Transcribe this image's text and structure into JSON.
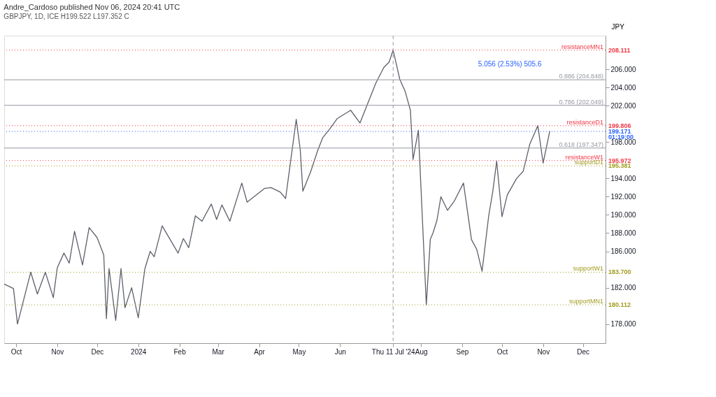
{
  "chart_data": {
    "type": "line",
    "title": "Andre_Cardoso published Nov 06, 2024 20:41 UTC",
    "subtitle": "GBPJPY, 1D, ICE  H199.522  L197.352  C",
    "ylabel": "JPY",
    "x": [
      "2023-09-22",
      "2023-09-29",
      "2023-10-02",
      "2023-10-12",
      "2023-10-17",
      "2023-10-23",
      "2023-10-29",
      "2023-11-01",
      "2023-11-06",
      "2023-11-10",
      "2023-11-14",
      "2023-11-20",
      "2023-11-25",
      "2023-12-01",
      "2023-12-06",
      "2023-12-08",
      "2023-12-10",
      "2023-12-15",
      "2023-12-19",
      "2023-12-22",
      "2023-12-27",
      "2024-01-01",
      "2024-01-06",
      "2024-01-10",
      "2024-01-13",
      "2024-01-19",
      "2024-01-25",
      "2024-01-31",
      "2024-02-04",
      "2024-02-08",
      "2024-02-13",
      "2024-02-18",
      "2024-02-25",
      "2024-02-29",
      "2024-03-04",
      "2024-03-10",
      "2024-03-19",
      "2024-03-23",
      "2024-04-05",
      "2024-04-10",
      "2024-04-17",
      "2024-04-21",
      "2024-04-29",
      "2024-05-02",
      "2024-05-04",
      "2024-05-10",
      "2024-05-15",
      "2024-05-19",
      "2024-05-24",
      "2024-05-30",
      "2024-06-09",
      "2024-06-16",
      "2024-06-28",
      "2024-07-04",
      "2024-07-08",
      "2024-07-11",
      "2024-07-14",
      "2024-07-16",
      "2024-07-20",
      "2024-07-24",
      "2024-07-26",
      "2024-07-30",
      "2024-08-05",
      "2024-08-08",
      "2024-08-10",
      "2024-08-13",
      "2024-08-16",
      "2024-08-21",
      "2024-08-26",
      "2024-09-02",
      "2024-09-08",
      "2024-09-12",
      "2024-09-16",
      "2024-09-21",
      "2024-09-24",
      "2024-09-27",
      "2024-10-01",
      "2024-10-05",
      "2024-10-12",
      "2024-10-17",
      "2024-10-22",
      "2024-10-28",
      "2024-11-01",
      "2024-11-04",
      "2024-11-06"
    ],
    "series": [
      {
        "color": "#5d606b",
        "values": [
          182.4,
          181.9,
          178.0,
          183.7,
          181.3,
          183.7,
          180.9,
          184.2,
          185.8,
          184.7,
          188.2,
          184.5,
          188.6,
          187.5,
          185.6,
          178.6,
          184.1,
          178.4,
          184.1,
          179.8,
          182.0,
          178.7,
          184.1,
          186.0,
          185.4,
          188.8,
          187.3,
          185.8,
          187.4,
          186.4,
          189.9,
          189.3,
          191.2,
          189.5,
          191.1,
          189.3,
          193.5,
          191.4,
          192.9,
          193.0,
          192.5,
          191.8,
          200.5,
          197.2,
          192.6,
          194.8,
          197.0,
          198.5,
          199.4,
          200.6,
          201.5,
          200.1,
          204.5,
          206.2,
          206.8,
          208.1,
          206.2,
          204.9,
          203.6,
          201.5,
          196.1,
          199.3,
          180.1,
          187.3,
          188.0,
          189.4,
          192.0,
          190.5,
          191.5,
          193.5,
          187.3,
          186.2,
          183.8,
          189.9,
          192.5,
          195.9,
          189.8,
          192.2,
          194.0,
          194.8,
          197.8,
          199.8,
          195.7,
          197.8,
          199.2
        ]
      }
    ],
    "xlim": [
      "2023-09-22",
      "2024-12-18"
    ],
    "xticks": [
      {
        "value": "2023-10-01",
        "label": "Oct"
      },
      {
        "value": "2023-11-01",
        "label": "Nov"
      },
      {
        "value": "2023-12-01",
        "label": "Dec"
      },
      {
        "value": "2024-01-01",
        "label": "2024"
      },
      {
        "value": "2024-02-01",
        "label": "Feb"
      },
      {
        "value": "2024-03-01",
        "label": "Mar"
      },
      {
        "value": "2024-04-01",
        "label": "Apr"
      },
      {
        "value": "2024-05-01",
        "label": "May"
      },
      {
        "value": "2024-06-01",
        "label": "Jun"
      },
      {
        "value": "2024-07-11",
        "label": "Thu 11 Jul '24"
      },
      {
        "value": "2024-08-01",
        "label": "Aug"
      },
      {
        "value": "2024-09-01",
        "label": "Sep"
      },
      {
        "value": "2024-10-01",
        "label": "Oct"
      },
      {
        "value": "2024-11-01",
        "label": "Nov"
      },
      {
        "value": "2024-12-01",
        "label": "Dec"
      }
    ],
    "ylim": [
      175.9,
      209.7
    ],
    "yticks": [
      {
        "value": 178,
        "label": "178.000"
      },
      {
        "value": 182,
        "label": "182.000"
      },
      {
        "value": 186,
        "label": "186.000"
      },
      {
        "value": 188,
        "label": "188.000"
      },
      {
        "value": 190,
        "label": "190.000"
      },
      {
        "value": 192,
        "label": "192.000"
      },
      {
        "value": 194,
        "label": "194.000"
      },
      {
        "value": 198,
        "label": "198.000"
      },
      {
        "value": 202,
        "label": "202.000"
      },
      {
        "value": 204,
        "label": "204.000"
      },
      {
        "value": 206,
        "label": "206.000"
      }
    ],
    "ref_lines": [
      {
        "axis": "y",
        "value": 208.111,
        "label": "resistanceMN1",
        "color": "#f23645",
        "line_style": "dotted"
      },
      {
        "axis": "y",
        "value": 199.806,
        "label": "resistanceD1",
        "color": "#f23645",
        "line_style": "dotted"
      },
      {
        "axis": "y",
        "value": 199.171,
        "color": "#2962ff",
        "line_style": "dotted"
      },
      {
        "axis": "y",
        "value": 195.972,
        "label": "resistanceW1",
        "color": "#f23645",
        "line_style": "dotted"
      },
      {
        "axis": "y",
        "value": 195.381,
        "label": "supportD1",
        "color": "#a19a1c",
        "line_style": "dotted"
      },
      {
        "axis": "y",
        "value": 183.7,
        "label": "supportW1",
        "color": "#a19a1c",
        "line_style": "dotted"
      },
      {
        "axis": "y",
        "value": 180.112,
        "label": "supportMN1",
        "color": "#a19a1c",
        "line_style": "dotted"
      },
      {
        "axis": "y",
        "value": 204.848,
        "label": "0.886 (204.848)",
        "color": "#9598a1",
        "line_style": "solid"
      },
      {
        "axis": "y",
        "value": 202.049,
        "label": "0.786 (202.049)",
        "color": "#9598a1",
        "line_style": "solid"
      },
      {
        "axis": "y",
        "value": 197.347,
        "label": "0.618 (197.347)",
        "color": "#9598a1",
        "line_style": "solid"
      },
      {
        "axis": "x",
        "value": "2024-07-11",
        "color": "#9598a1",
        "line_style": "dashed"
      }
    ],
    "annotations": [
      {
        "text": "5.056 (2.53%) 505.6",
        "x": "2024-10-28",
        "y": 204.848
      },
      {
        "text": "208.111",
        "x": "2024-12-18",
        "y": 208.111
      },
      {
        "text": "199.806",
        "x": "2024-12-18",
        "y": 199.806
      },
      {
        "text": "199.171",
        "x": "2024-12-18",
        "y": 199.171
      },
      {
        "text": "01:19:00",
        "x": "2024-12-18",
        "y": 199.171
      },
      {
        "text": "195.972",
        "x": "2024-12-18",
        "y": 195.972
      },
      {
        "text": "195.381",
        "x": "2024-12-18",
        "y": 195.381
      },
      {
        "text": "183.700",
        "x": "2024-12-18",
        "y": 183.7
      },
      {
        "text": "180.112",
        "x": "2024-12-18",
        "y": 180.112
      }
    ],
    "grid": false,
    "marker": "none",
    "line_style": "solid"
  }
}
